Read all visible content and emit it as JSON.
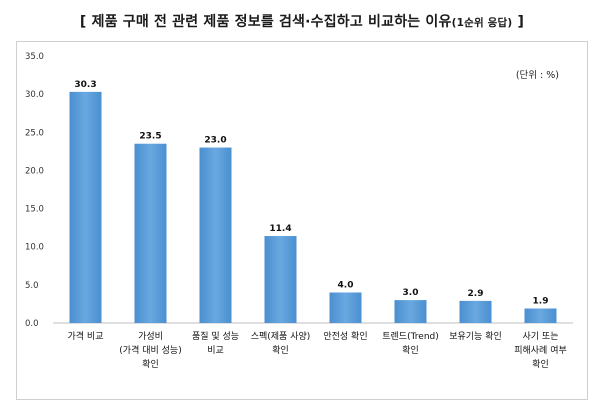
{
  "title": "[ 제품 구매 전 관련 제품 정보를 검색·수집하고 비교하는 이유",
  "title_small": "(1순위 응답)",
  "title_end": " ]",
  "unit_note": "(단위 : %)",
  "chart_data": {
    "type": "bar",
    "categories": [
      [
        "가격 비교"
      ],
      [
        "가성비",
        "(가격 대비 성능)",
        "확인"
      ],
      [
        "품질 및 성능",
        "비교"
      ],
      [
        "스펙(제품 사양)",
        "확인"
      ],
      [
        "안전성 확인"
      ],
      [
        "트렌드(Trend)",
        "확인"
      ],
      [
        "보유기능 확인"
      ],
      [
        "사기 또는",
        "피해사례 여부",
        "확인"
      ]
    ],
    "values": [
      30.3,
      23.5,
      23.0,
      11.4,
      4.0,
      3.0,
      2.9,
      1.9
    ],
    "value_labels": [
      "30.3",
      "23.5",
      "23.0",
      "11.4",
      "4.0",
      "3.0",
      "2.9",
      "1.9"
    ],
    "y_ticks": [
      "0.0",
      "5.0",
      "10.0",
      "15.0",
      "20.0",
      "25.0",
      "30.0",
      "35.0"
    ],
    "ylim": [
      0,
      35
    ],
    "grid": false,
    "bar_color": "#5b9bd5"
  }
}
